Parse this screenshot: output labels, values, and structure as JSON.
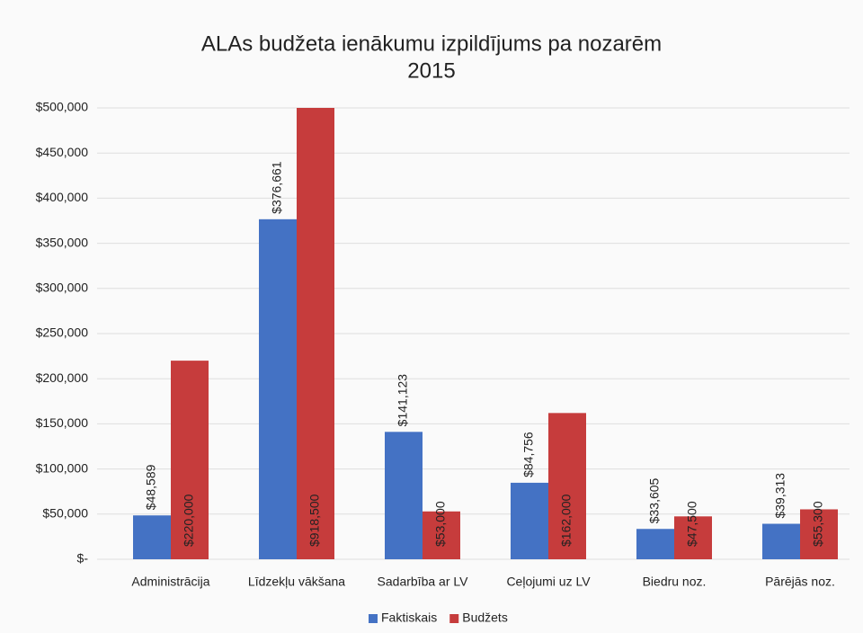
{
  "chart_data": {
    "type": "bar",
    "title": "ALAs budžeta ienākumu izpildījums pa nozarēm",
    "subtitle": "2015",
    "categories": [
      "Administrācija",
      "Līdzekļu vākšana",
      "Sadarbība ar LV",
      "Ceļojumi uz LV",
      "Biedru noz.",
      "Pārējās noz."
    ],
    "series": [
      {
        "name": "Faktiskais",
        "color": "#4472c4",
        "values": [
          48589,
          376661,
          141123,
          84756,
          33605,
          39313
        ],
        "value_labels": [
          "$48,589",
          "$376,661",
          "$141,123",
          "$84,756",
          "$33,605",
          "$39,313"
        ]
      },
      {
        "name": "Budžets",
        "color": "#c63c3c",
        "values": [
          220000,
          918500,
          53000,
          162000,
          47500,
          55300
        ],
        "value_labels": [
          "$220,000",
          "$918,500",
          "$53,000",
          "$162,000",
          "$47,500",
          "$55,300"
        ]
      }
    ],
    "ylim": [
      0,
      500000
    ],
    "yticks": [
      {
        "value": 0,
        "label": "$-"
      },
      {
        "value": 50000,
        "label": "$50,000"
      },
      {
        "value": 100000,
        "label": "$100,000"
      },
      {
        "value": 150000,
        "label": "$150,000"
      },
      {
        "value": 200000,
        "label": "$200,000"
      },
      {
        "value": 250000,
        "label": "$250,000"
      },
      {
        "value": 300000,
        "label": "$300,000"
      },
      {
        "value": 350000,
        "label": "$350,000"
      },
      {
        "value": 400000,
        "label": "$400,000"
      },
      {
        "value": 450000,
        "label": "$450,000"
      },
      {
        "value": 500000,
        "label": "$500,000"
      }
    ],
    "grid": true,
    "legend": "bottom"
  }
}
